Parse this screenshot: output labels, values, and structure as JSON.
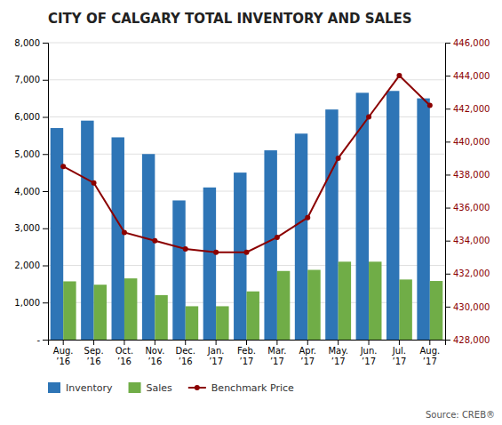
{
  "chart_data": {
    "type": "bar",
    "title": "CITY OF CALGARY TOTAL INVENTORY AND SALES",
    "categories": [
      "Aug.\n’16",
      "Sep.\n’16",
      "Oct.\n’16",
      "Nov.\n’16",
      "Dec.\n’16",
      "Jan.\n’17",
      "Feb.\n’17",
      "Mar.\n’17",
      "Apr.\n’17",
      "May.\n’17",
      "Jun.\n’17",
      "Jul.\n’17",
      "Aug.\n’17"
    ],
    "series": [
      {
        "name": "Inventory",
        "color": "#2E75B6",
        "values": [
          5700,
          5900,
          5450,
          5000,
          3750,
          4100,
          4500,
          5100,
          5550,
          6200,
          6650,
          6700,
          6500
        ]
      },
      {
        "name": "Sales",
        "color": "#70AD47",
        "values": [
          1570,
          1480,
          1650,
          1200,
          900,
          900,
          1300,
          1850,
          1880,
          2100,
          2100,
          1620,
          1580
        ]
      },
      {
        "name": "Benchmark Price",
        "color": "#8B0000",
        "type": "line",
        "axis": "y2",
        "marker": "circle",
        "values": [
          438500,
          437500,
          434500,
          434000,
          433500,
          433300,
          433300,
          434200,
          435400,
          439000,
          441500,
          444000,
          442200
        ]
      }
    ],
    "ylim": [
      0,
      8000
    ],
    "yticks": [
      {
        "value": 0,
        "label": "-"
      },
      {
        "value": 1000,
        "label": "1,000"
      },
      {
        "value": 2000,
        "label": "2,000"
      },
      {
        "value": 3000,
        "label": "3,000"
      },
      {
        "value": 4000,
        "label": "4,000"
      },
      {
        "value": 5000,
        "label": "5,000"
      },
      {
        "value": 6000,
        "label": "6,000"
      },
      {
        "value": 7000,
        "label": "7,000"
      },
      {
        "value": 8000,
        "label": "8,000"
      }
    ],
    "y2lim": [
      428000,
      446000
    ],
    "y2ticks": [
      {
        "value": 428000,
        "label": "428,000"
      },
      {
        "value": 430000,
        "label": "430,000"
      },
      {
        "value": 432000,
        "label": "432,000"
      },
      {
        "value": 434000,
        "label": "434,000"
      },
      {
        "value": 436000,
        "label": "436,000"
      },
      {
        "value": 438000,
        "label": "438,000"
      },
      {
        "value": 440000,
        "label": "440,000"
      },
      {
        "value": 442000,
        "label": "442,000"
      },
      {
        "value": 444000,
        "label": "444,000"
      },
      {
        "value": 446000,
        "label": "446,000"
      }
    ],
    "grid": true,
    "legend": "bottom",
    "annotations": [
      "Source: CREB®"
    ]
  }
}
